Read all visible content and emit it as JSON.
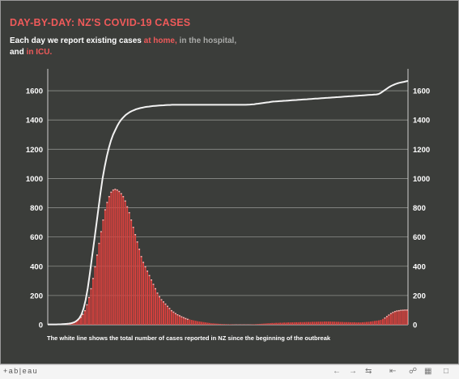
{
  "header": {
    "title": "DAY-BY-DAY: NZ'S COVID-19 CASES",
    "subtitle_parts": [
      "Each day we report existing cases ",
      "at home,",
      " in the hospital,",
      " and ",
      "in ICU."
    ]
  },
  "colors": {
    "background": "#3b3d3a",
    "bars": "#d9413e",
    "line": "#f2f2f2",
    "accent_red": "#ef5a5a",
    "accent_grey": "#a9aaa8"
  },
  "chart_data": {
    "type": "bar",
    "ylim": [
      0,
      1750
    ],
    "yticks": [
      0,
      200,
      400,
      600,
      800,
      1000,
      1200,
      1400,
      1600
    ],
    "grid": true,
    "dual_axis": "left and right mirror",
    "bars_values": [
      2,
      2,
      2,
      2,
      2,
      3,
      3,
      4,
      5,
      6,
      8,
      10,
      14,
      20,
      28,
      40,
      55,
      75,
      100,
      140,
      190,
      250,
      320,
      400,
      480,
      560,
      640,
      720,
      790,
      840,
      880,
      910,
      925,
      930,
      925,
      915,
      900,
      880,
      850,
      810,
      770,
      720,
      670,
      620,
      570,
      520,
      470,
      430,
      400,
      370,
      340,
      310,
      280,
      250,
      220,
      195,
      175,
      160,
      145,
      130,
      115,
      100,
      90,
      80,
      72,
      65,
      58,
      52,
      46,
      41,
      37,
      33,
      30,
      27,
      24,
      22,
      20,
      18,
      16,
      14,
      12,
      10,
      9,
      8,
      7,
      6,
      5,
      4,
      4,
      3,
      3,
      3,
      2,
      2,
      2,
      2,
      2,
      2,
      2,
      2,
      2,
      3,
      3,
      4,
      5,
      6,
      7,
      8,
      9,
      10,
      11,
      12,
      12,
      13,
      13,
      14,
      14,
      15,
      15,
      16,
      16,
      16,
      17,
      17,
      17,
      18,
      18,
      18,
      19,
      19,
      19,
      20,
      20,
      20,
      21,
      21,
      21,
      22,
      22,
      22,
      22,
      21,
      21,
      20,
      20,
      19,
      19,
      18,
      18,
      18,
      17,
      17,
      17,
      16,
      16,
      16,
      17,
      18,
      19,
      20,
      22,
      24,
      26,
      28,
      30,
      33,
      40,
      50,
      60,
      70,
      80,
      88,
      94,
      98,
      100,
      102,
      103,
      104,
      104
    ],
    "line_values": [
      2,
      2,
      2,
      2,
      2,
      3,
      3,
      4,
      5,
      6,
      8,
      10,
      14,
      20,
      30,
      45,
      70,
      110,
      170,
      250,
      350,
      460,
      570,
      680,
      790,
      900,
      1000,
      1080,
      1150,
      1210,
      1260,
      1300,
      1330,
      1360,
      1385,
      1405,
      1420,
      1435,
      1445,
      1455,
      1462,
      1468,
      1474,
      1478,
      1482,
      1485,
      1488,
      1490,
      1492,
      1494,
      1496,
      1497,
      1498,
      1499,
      1500,
      1501,
      1502,
      1503,
      1503,
      1504,
      1504,
      1504,
      1504,
      1504,
      1504,
      1504,
      1504,
      1504,
      1504,
      1504,
      1504,
      1504,
      1504,
      1504,
      1504,
      1504,
      1504,
      1504,
      1504,
      1504,
      1504,
      1504,
      1504,
      1504,
      1504,
      1504,
      1504,
      1504,
      1504,
      1504,
      1504,
      1504,
      1504,
      1504,
      1504,
      1505,
      1506,
      1507,
      1508,
      1510,
      1512,
      1514,
      1516,
      1518,
      1520,
      1522,
      1524,
      1526,
      1527,
      1528,
      1529,
      1530,
      1531,
      1532,
      1533,
      1534,
      1535,
      1536,
      1537,
      1538,
      1539,
      1540,
      1541,
      1542,
      1543,
      1544,
      1545,
      1546,
      1547,
      1548,
      1549,
      1550,
      1551,
      1552,
      1553,
      1554,
      1555,
      1556,
      1557,
      1558,
      1559,
      1560,
      1561,
      1562,
      1563,
      1564,
      1565,
      1566,
      1567,
      1568,
      1569,
      1570,
      1571,
      1572,
      1573,
      1574,
      1575,
      1578,
      1585,
      1595,
      1605,
      1615,
      1625,
      1633,
      1640,
      1646,
      1651,
      1655,
      1658,
      1661,
      1664,
      1668
    ]
  },
  "caption": "The white line shows the total number of cases reported in NZ since the beginning of the outbreak",
  "toolbar": {
    "logo": "+ab|eau",
    "icons": [
      "undo-icon",
      "redo-icon",
      "revert-icon",
      "reset-icon",
      "share-icon",
      "download-icon",
      "fullscreen-icon"
    ]
  }
}
